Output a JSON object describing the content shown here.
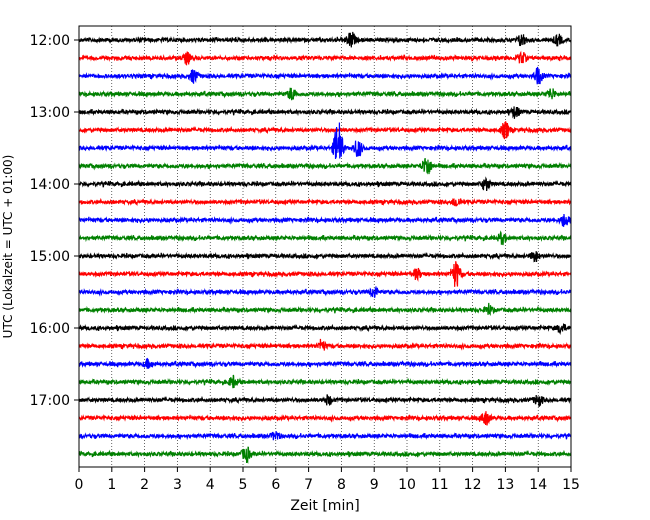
{
  "chart_data": {
    "type": "line",
    "title": "",
    "xlabel": "Zeit  [min]",
    "ylabel": "UTC (Lokalzeit = UTC + 01:00)",
    "xlim": [
      0,
      15
    ],
    "xticks": [
      0,
      1,
      2,
      3,
      4,
      5,
      6,
      7,
      8,
      9,
      10,
      11,
      12,
      13,
      14,
      15
    ],
    "grid": "vertical dotted at each minute",
    "yticks": [
      "12:00",
      "13:00",
      "14:00",
      "15:00",
      "16:00",
      "17:00"
    ],
    "colors": [
      "#000000",
      "#ff0000",
      "#0000ff",
      "#008000"
    ],
    "traces": [
      {
        "start": "12:00",
        "color": "#000000",
        "events": [
          {
            "t": 8.3,
            "amp": 0.45
          },
          {
            "t": 13.5,
            "amp": 0.35
          },
          {
            "t": 14.6,
            "amp": 0.3
          }
        ]
      },
      {
        "start": "12:15",
        "color": "#ff0000",
        "events": [
          {
            "t": 3.3,
            "amp": 0.3
          },
          {
            "t": 13.5,
            "amp": 0.3
          }
        ]
      },
      {
        "start": "12:30",
        "color": "#0000ff",
        "events": [
          {
            "t": 3.5,
            "amp": 0.35
          },
          {
            "t": 14,
            "amp": 0.45
          }
        ]
      },
      {
        "start": "12:45",
        "color": "#008000",
        "events": [
          {
            "t": 6.5,
            "amp": 0.35
          },
          {
            "t": 14.4,
            "amp": 0.3
          }
        ]
      },
      {
        "start": "13:00",
        "color": "#000000",
        "events": [
          {
            "t": 13.3,
            "amp": 0.3
          }
        ]
      },
      {
        "start": "13:15",
        "color": "#ff0000",
        "events": [
          {
            "t": 13,
            "amp": 0.45
          }
        ]
      },
      {
        "start": "13:30",
        "color": "#0000ff",
        "events": [
          {
            "t": 7.9,
            "amp": 1.5
          },
          {
            "t": 8.5,
            "amp": 0.5
          }
        ]
      },
      {
        "start": "13:45",
        "color": "#008000",
        "events": [
          {
            "t": 10.6,
            "amp": 0.6
          }
        ]
      },
      {
        "start": "14:00",
        "color": "#000000",
        "events": [
          {
            "t": 12.4,
            "amp": 0.35
          }
        ]
      },
      {
        "start": "14:15",
        "color": "#ff0000",
        "events": [
          {
            "t": 11.5,
            "amp": 0.25
          }
        ]
      },
      {
        "start": "14:30",
        "color": "#0000ff",
        "events": [
          {
            "t": 14.8,
            "amp": 0.35
          }
        ]
      },
      {
        "start": "14:45",
        "color": "#008000",
        "events": [
          {
            "t": 12.9,
            "amp": 0.3
          }
        ]
      },
      {
        "start": "15:00",
        "color": "#000000",
        "events": [
          {
            "t": 13.9,
            "amp": 0.3
          }
        ]
      },
      {
        "start": "15:15",
        "color": "#ff0000",
        "events": [
          {
            "t": 11.5,
            "amp": 0.75
          },
          {
            "t": 10.3,
            "amp": 0.3
          }
        ]
      },
      {
        "start": "15:30",
        "color": "#0000ff",
        "events": [
          {
            "t": 9,
            "amp": 0.3
          }
        ]
      },
      {
        "start": "15:45",
        "color": "#008000",
        "events": [
          {
            "t": 12.5,
            "amp": 0.25
          }
        ]
      },
      {
        "start": "16:00",
        "color": "#000000",
        "events": [
          {
            "t": 14.7,
            "amp": 0.25
          }
        ]
      },
      {
        "start": "16:15",
        "color": "#ff0000",
        "events": [
          {
            "t": 7.4,
            "amp": 0.25
          }
        ]
      },
      {
        "start": "16:30",
        "color": "#0000ff",
        "events": [
          {
            "t": 2.1,
            "amp": 0.2
          }
        ]
      },
      {
        "start": "16:45",
        "color": "#008000",
        "events": [
          {
            "t": 4.7,
            "amp": 0.3
          }
        ]
      },
      {
        "start": "17:00",
        "color": "#000000",
        "events": [
          {
            "t": 7.6,
            "amp": 0.25
          },
          {
            "t": 14,
            "amp": 0.3
          }
        ]
      },
      {
        "start": "17:15",
        "color": "#ff0000",
        "events": [
          {
            "t": 12.4,
            "amp": 0.35
          }
        ]
      },
      {
        "start": "17:30",
        "color": "#0000ff",
        "events": [
          {
            "t": 6,
            "amp": 0.25
          }
        ]
      },
      {
        "start": "17:45",
        "color": "#008000",
        "events": [
          {
            "t": 5.1,
            "amp": 0.4
          }
        ]
      }
    ]
  }
}
